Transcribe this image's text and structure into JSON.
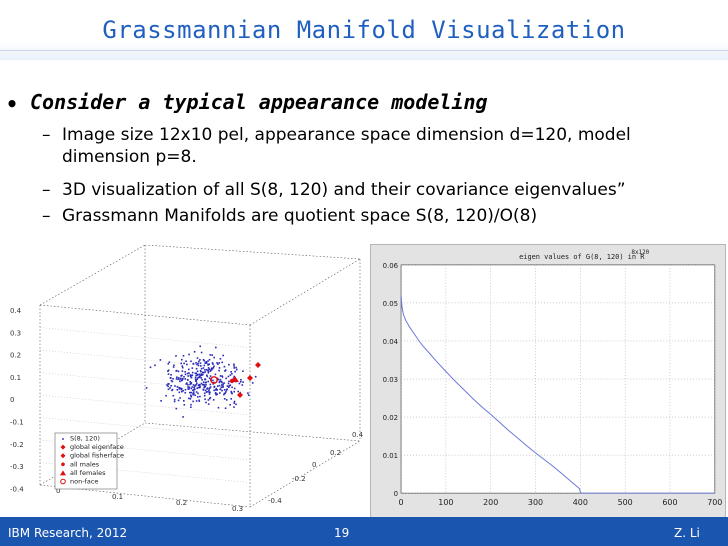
{
  "slide": {
    "title": "Grassmannian Manifold Visualization",
    "bullet": "Consider a typical appearance modeling",
    "sub_bullets": [
      "Image size 12x10 pel, appearance space dimension d=120, model dimension p=8.",
      "3D visualization of all S(8, 120) and their covariance eigenvalues”",
      "Grassmann Manifolds are quotient space S(8, 120)/O(8)"
    ]
  },
  "plot3d": {
    "z_ticks": [
      "0.4",
      "0.3",
      "0.2",
      "0.1",
      "0",
      "-0.1",
      "-0.2",
      "-0.3",
      "-0.4"
    ],
    "x_ticks": [
      "0",
      "0.1",
      "0.2",
      "0.3"
    ],
    "y_ticks": [
      "0.4",
      "0.2",
      "0",
      "-0.2",
      "-0.4"
    ],
    "legend": [
      "S(8, 120)",
      "global eigenface",
      "global fisherface",
      "all males",
      "all females",
      "non-face"
    ],
    "colors": {
      "points": "#2a2ab8",
      "highlight": "#e01010",
      "axes": "#555555"
    }
  },
  "chart_data": {
    "type": "line",
    "title": "eigen values of G(8, 120) in R",
    "title_superscript": "8x120",
    "xlim": [
      0,
      700
    ],
    "ylim": [
      0,
      0.06
    ],
    "x_ticks": [
      0,
      100,
      200,
      300,
      400,
      500,
      600,
      700
    ],
    "y_ticks": [
      0,
      0.01,
      0.02,
      0.03,
      0.04,
      0.05,
      0.06
    ],
    "y_tick_labels": [
      "0",
      "0.01",
      "0.02",
      "0.03",
      "0.04",
      "0.05",
      "0.06"
    ],
    "grid": true,
    "series": [
      {
        "color": "#6b78d8",
        "x": [
          0,
          2,
          5,
          10,
          20,
          30,
          40,
          50,
          60,
          80,
          100,
          120,
          140,
          160,
          180,
          200,
          220,
          240,
          260,
          280,
          300,
          320,
          340,
          360,
          380,
          398,
          400,
          402,
          700
        ],
        "y": [
          0.052,
          0.049,
          0.047,
          0.0455,
          0.0435,
          0.0418,
          0.04,
          0.0385,
          0.0372,
          0.0345,
          0.032,
          0.0295,
          0.0272,
          0.0249,
          0.0227,
          0.0207,
          0.0186,
          0.0165,
          0.0145,
          0.0125,
          0.0106,
          0.0088,
          0.007,
          0.005,
          0.003,
          0.0012,
          0.0003,
          0,
          0
        ]
      }
    ]
  },
  "footer": {
    "left": "IBM Research, 2012",
    "page": "19",
    "right": "Z. Li"
  }
}
